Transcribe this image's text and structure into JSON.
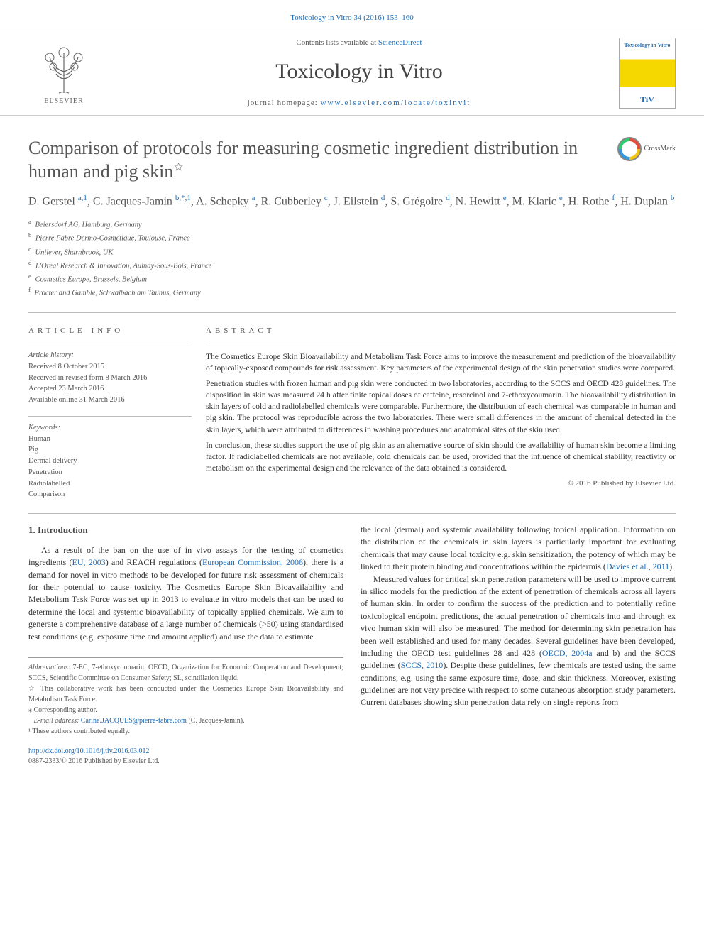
{
  "header": {
    "citation": "Toxicology in Vitro 34 (2016) 153–160",
    "contents_prefix": "Contents lists available at ",
    "contents_link": "ScienceDirect",
    "journal_name": "Toxicology in Vitro",
    "homepage_prefix": "journal homepage: ",
    "homepage_link": "www.elsevier.com/locate/toxinvit",
    "publisher": "ELSEVIER",
    "cover_title": "Toxicology in Vitro",
    "cover_logo": "TiV"
  },
  "crossmark": {
    "label": "CrossMark"
  },
  "article": {
    "title": "Comparison of protocols for measuring cosmetic ingredient distribution in human and pig skin",
    "title_star": "☆",
    "authors_html": "D. Gerstel <sup>a,1</sup>, C. Jacques-Jamin <sup>b,*,1</sup>, A. Schepky <sup>a</sup>, R. Cubberley <sup>c</sup>, J. Eilstein <sup>d</sup>, S. Grégoire <sup>d</sup>, N. Hewitt <sup>e</sup>, M. Klaric <sup>e</sup>, H. Rothe <sup>f</sup>, H. Duplan <sup>b</sup>",
    "affiliations": [
      {
        "sup": "a",
        "text": "Beiersdorf AG, Hamburg, Germany"
      },
      {
        "sup": "b",
        "text": "Pierre Fabre Dermo-Cosmétique, Toulouse, France"
      },
      {
        "sup": "c",
        "text": "Unilever, Sharnbrook, UK"
      },
      {
        "sup": "d",
        "text": "L'Oreal Research & Innovation, Aulnay-Sous-Bois, France"
      },
      {
        "sup": "e",
        "text": "Cosmetics Europe, Brussels, Belgium"
      },
      {
        "sup": "f",
        "text": "Procter and Gamble, Schwalbach am Taunus, Germany"
      }
    ]
  },
  "info": {
    "heading": "ARTICLE INFO",
    "history_label": "Article history:",
    "history": [
      "Received 8 October 2015",
      "Received in revised form 8 March 2016",
      "Accepted 23 March 2016",
      "Available online 31 March 2016"
    ],
    "keywords_label": "Keywords:",
    "keywords": [
      "Human",
      "Pig",
      "Dermal delivery",
      "Penetration",
      "Radiolabelled",
      "Comparison"
    ]
  },
  "abstract": {
    "heading": "ABSTRACT",
    "p1": "The Cosmetics Europe Skin Bioavailability and Metabolism Task Force aims to improve the measurement and prediction of the bioavailability of topically-exposed compounds for risk assessment. Key parameters of the experimental design of the skin penetration studies were compared.",
    "p2": "Penetration studies with frozen human and pig skin were conducted in two laboratories, according to the SCCS and OECD 428 guidelines. The disposition in skin was measured 24 h after finite topical doses of caffeine, resorcinol and 7-ethoxycoumarin. The bioavailability distribution in skin layers of cold and radiolabelled chemicals were comparable. Furthermore, the distribution of each chemical was comparable in human and pig skin. The protocol was reproducible across the two laboratories. There were small differences in the amount of chemical detected in the skin layers, which were attributed to differences in washing procedures and anatomical sites of the skin used.",
    "p3": "In conclusion, these studies support the use of pig skin as an alternative source of skin should the availability of human skin become a limiting factor. If radiolabelled chemicals are not available, cold chemicals can be used, provided that the influence of chemical stability, reactivity or metabolism on the experimental design and the relevance of the data obtained is considered.",
    "copyright": "© 2016 Published by Elsevier Ltd."
  },
  "body": {
    "intro_heading": "1. Introduction",
    "left_p1_pre": "As a result of the ban on the use of in vivo assays for the testing of cosmetics ingredients (",
    "left_link1": "EU, 2003",
    "left_p1_mid": ") and REACH regulations (",
    "left_link2": "European Commission, 2006",
    "left_p1_post": "), there is a demand for novel in vitro methods to be developed for future risk assessment of chemicals for their potential to cause toxicity. The Cosmetics Europe Skin Bioavailability and Metabolism Task Force was set up in 2013 to evaluate in vitro models that can be used to determine the local and systemic bioavailability of topically applied chemicals. We aim to generate a comprehensive database of a large number of chemicals (>50) using standardised test conditions (e.g. exposure time and amount applied) and use the data to estimate",
    "right_p1_pre": "the local (dermal) and systemic availability following topical application. Information on the distribution of the chemicals in skin layers is particularly important for evaluating chemicals that may cause local toxicity e.g. skin sensitization, the potency of which may be linked to their protein binding and concentrations within the epidermis (",
    "right_link1": "Davies et al., 2011",
    "right_p1_post": ").",
    "right_p2_pre": "Measured values for critical skin penetration parameters will be used to improve current in silico models for the prediction of the extent of penetration of chemicals across all layers of human skin. In order to confirm the success of the prediction and to potentially refine toxicological endpoint predictions, the actual penetration of chemicals into and through ex vivo human skin will also be measured. The method for determining skin penetration has been well established and used for many decades. Several guidelines have been developed, including the OECD test guidelines 28 and 428 (",
    "right_link2": "OECD, 2004a",
    "right_p2_mid": " and b) and the SCCS guidelines (",
    "right_link3": "SCCS, 2010",
    "right_p2_post": "). Despite these guidelines, few chemicals are tested using the same conditions, e.g. using the same exposure time, dose, and skin thickness. Moreover, existing guidelines are not very precise with respect to some cutaneous absorption study parameters. Current databases showing skin penetration data rely on single reports from"
  },
  "footnotes": {
    "abbrev_label": "Abbreviations:",
    "abbrev_text": " 7-EC, 7-ethoxycoumarin; OECD, Organization for Economic Cooperation and Development; SCCS, Scientific Committee on Consumer Safety; SL, scintillation liquid.",
    "star_note": "☆ This collaborative work has been conducted under the Cosmetics Europe Skin Bioavailability and Metabolism Task Force.",
    "corresponding": "⁎ Corresponding author.",
    "email_label": "E-mail address:",
    "email": "Carine.JACQUES@pierre-fabre.com",
    "email_suffix": " (C. Jacques-Jamin).",
    "equal": "¹ These authors contributed equally."
  },
  "footer": {
    "doi": "http://dx.doi.org/10.1016/j.tiv.2016.03.012",
    "issn_copyright": "0887-2333/© 2016 Published by Elsevier Ltd."
  },
  "colors": {
    "link": "#1a6bb8",
    "text": "#333333",
    "muted": "#555555",
    "border": "#bbbbbb"
  }
}
